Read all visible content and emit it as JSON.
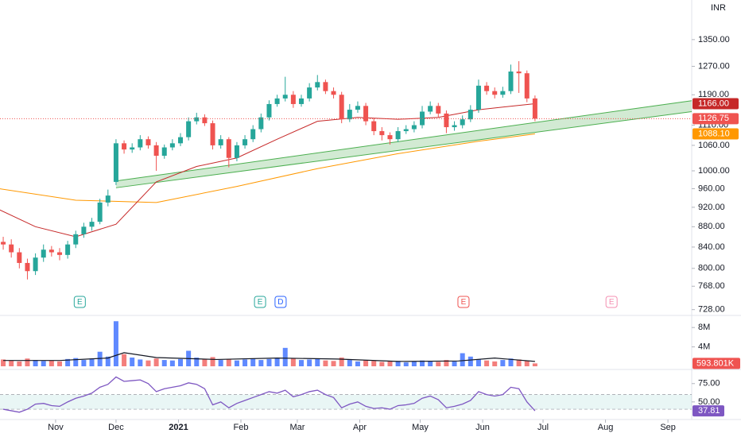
{
  "chart_data": {
    "type": "candlestick",
    "currency": "INR",
    "xlim": [
      -7.6,
      335.8
    ],
    "xticks": [
      {
        "value": 20,
        "label": "Nov"
      },
      {
        "value": 50,
        "label": "Dec"
      },
      {
        "value": 81,
        "label": "2021"
      },
      {
        "value": 112,
        "label": "Feb"
      },
      {
        "value": 140,
        "label": "Mar"
      },
      {
        "value": 171,
        "label": "Apr"
      },
      {
        "value": 201,
        "label": "May"
      },
      {
        "value": 232,
        "label": "Jun"
      },
      {
        "value": 262,
        "label": "Jul"
      },
      {
        "value": 293,
        "label": "Aug"
      },
      {
        "value": 324,
        "label": "Sep"
      }
    ],
    "ylim": [
      721,
      1478
    ],
    "log_scale": true,
    "grid": false,
    "yticks": [
      {
        "value": 728,
        "label": "728.00"
      },
      {
        "value": 768,
        "label": "768.00"
      },
      {
        "value": 800,
        "label": "800.00"
      },
      {
        "value": 840,
        "label": "840.00"
      },
      {
        "value": 880,
        "label": "880.00"
      },
      {
        "value": 920,
        "label": "920.00"
      },
      {
        "value": 960,
        "label": "960.00"
      },
      {
        "value": 1000,
        "label": "1000.00"
      },
      {
        "value": 1060,
        "label": "1060.00"
      },
      {
        "value": 1110,
        "label": "1110.00"
      },
      {
        "value": 1190,
        "label": "1190.00"
      },
      {
        "value": 1270,
        "label": "1270.00"
      },
      {
        "value": 1350,
        "label": "1350.00"
      }
    ],
    "up_color": "#26a69a",
    "down_color": "#ef5350",
    "x": [
      -6,
      -2,
      2,
      6,
      10,
      14,
      18,
      22,
      26,
      30,
      34,
      38,
      42,
      46,
      50,
      54,
      58,
      62,
      66,
      70,
      74,
      78,
      82,
      86,
      90,
      94,
      98,
      102,
      106,
      110,
      114,
      118,
      122,
      126,
      130,
      134,
      138,
      142,
      146,
      150,
      154,
      158,
      162,
      166,
      170,
      174,
      178,
      182,
      186,
      190,
      194,
      198,
      202,
      206,
      210,
      214,
      218,
      222,
      226,
      230,
      234,
      238,
      242,
      246,
      250,
      254,
      258
    ],
    "open": [
      850,
      845,
      830,
      810,
      795,
      820,
      835,
      830,
      825,
      845,
      865,
      880,
      890,
      930,
      975,
      1065,
      1050,
      1055,
      1075,
      1060,
      1035,
      1055,
      1065,
      1080,
      1120,
      1130,
      1115,
      1060,
      1075,
      1030,
      1060,
      1075,
      1100,
      1130,
      1165,
      1180,
      1190,
      1165,
      1180,
      1210,
      1225,
      1200,
      1190,
      1125,
      1150,
      1160,
      1120,
      1095,
      1085,
      1075,
      1095,
      1100,
      1110,
      1145,
      1160,
      1140,
      1105,
      1110,
      1125,
      1150,
      1215,
      1200,
      1190,
      1200,
      1255,
      1250,
      1180
    ],
    "high": [
      860,
      855,
      838,
      818,
      828,
      845,
      842,
      838,
      852,
      872,
      888,
      898,
      938,
      958,
      1075,
      1072,
      1065,
      1085,
      1082,
      1068,
      1062,
      1075,
      1090,
      1130,
      1142,
      1138,
      1122,
      1085,
      1080,
      1068,
      1085,
      1110,
      1140,
      1175,
      1190,
      1240,
      1200,
      1190,
      1222,
      1245,
      1232,
      1210,
      1198,
      1165,
      1172,
      1168,
      1128,
      1105,
      1092,
      1105,
      1110,
      1120,
      1160,
      1172,
      1168,
      1148,
      1120,
      1135,
      1162,
      1232,
      1225,
      1210,
      1212,
      1275,
      1285,
      1258,
      1188
    ],
    "low": [
      835,
      820,
      800,
      780,
      788,
      812,
      822,
      815,
      818,
      838,
      858,
      872,
      885,
      922,
      968,
      1040,
      1042,
      1048,
      1052,
      1000,
      1028,
      1048,
      1058,
      1072,
      1112,
      1108,
      1050,
      1052,
      1008,
      1022,
      1052,
      1068,
      1092,
      1122,
      1158,
      1172,
      1155,
      1158,
      1172,
      1202,
      1192,
      1180,
      1115,
      1118,
      1142,
      1110,
      1085,
      1072,
      1062,
      1068,
      1088,
      1092,
      1102,
      1138,
      1130,
      1090,
      1096,
      1102,
      1118,
      1142,
      1190,
      1180,
      1182,
      1192,
      1195,
      1170,
      1120
    ],
    "close": [
      845,
      830,
      810,
      795,
      820,
      835,
      830,
      825,
      845,
      865,
      880,
      890,
      930,
      945,
      1065,
      1050,
      1055,
      1075,
      1060,
      1035,
      1055,
      1065,
      1080,
      1120,
      1130,
      1115,
      1060,
      1075,
      1030,
      1060,
      1075,
      1100,
      1130,
      1165,
      1180,
      1190,
      1165,
      1180,
      1210,
      1225,
      1200,
      1190,
      1125,
      1150,
      1160,
      1120,
      1095,
      1085,
      1075,
      1095,
      1100,
      1110,
      1145,
      1160,
      1140,
      1105,
      1110,
      1125,
      1150,
      1215,
      1200,
      1190,
      1200,
      1255,
      1250,
      1180,
      1126.75
    ],
    "last_close_label": "1126.75",
    "moving_averages": [
      {
        "color": "#ff9800",
        "x": [
          -8,
          30,
          70,
          110,
          150,
          190,
          230,
          258
        ],
        "values": [
          960,
          935,
          930,
          965,
          1005,
          1040,
          1070,
          1088.1
        ],
        "value_label": "1088.10"
      },
      {
        "color": "#c62828",
        "x": [
          -8,
          10,
          30,
          50,
          70,
          90,
          110,
          130,
          150,
          170,
          190,
          210,
          230,
          258
        ],
        "values": [
          915,
          880,
          860,
          885,
          975,
          1010,
          1030,
          1075,
          1120,
          1130,
          1125,
          1130,
          1150,
          1166
        ],
        "value_label": "1166.00"
      }
    ],
    "channel": {
      "color": "#4caf50",
      "fill": "#a5d6a7",
      "x": [
        50,
        335.8
      ],
      "upper": [
        977,
        1174
      ],
      "lower": [
        962,
        1145
      ]
    },
    "events": [
      {
        "x": 32,
        "label": "E",
        "color": "#26a69a"
      },
      {
        "x": 121.5,
        "label": "E",
        "color": "#26a69a"
      },
      {
        "x": 131.7,
        "label": "D",
        "color": "#2962ff"
      },
      {
        "x": 222.5,
        "label": "E",
        "color": "#ef5350"
      },
      {
        "x": 296,
        "label": "E",
        "color": "#f48fb1"
      }
    ],
    "volume": {
      "ylim": [
        0,
        10000000
      ],
      "yticks": [
        {
          "value": 4000000,
          "label": "4M"
        },
        {
          "value": 8000000,
          "label": "8M"
        }
      ],
      "up_color": "#2962ff",
      "down_color": "#ef5350",
      "values": [
        1400000,
        1200000,
        1000000,
        1600000,
        1300000,
        1100000,
        1200000,
        1000000,
        1500000,
        1700000,
        1300000,
        1600000,
        3000000,
        2000000,
        9300000,
        2500000,
        1800000,
        1400000,
        1200000,
        1600000,
        1300000,
        1200000,
        1500000,
        3200000,
        1800000,
        1400000,
        1900000,
        1300000,
        1500000,
        1200000,
        1400000,
        1600000,
        1300000,
        1500000,
        1700000,
        3800000,
        1600000,
        1300000,
        1400000,
        1500000,
        1200000,
        1100000,
        1800000,
        1300000,
        1000000,
        1200000,
        1100000,
        900000,
        1000000,
        1100000,
        800000,
        1000000,
        1200000,
        1100000,
        900000,
        1300000,
        1000000,
        2700000,
        2000000,
        1400000,
        1200000,
        1000000,
        1300000,
        1600000,
        1400000,
        1100000,
        593801
      ],
      "value_label": "593.801K",
      "ma": {
        "color": "#131722",
        "x": [
          -6,
          22,
          46,
          54,
          70,
          100,
          130,
          160,
          190,
          220,
          238,
          258
        ],
        "values": [
          1200000,
          1200000,
          1700000,
          2800000,
          1800000,
          1400000,
          1700000,
          1500000,
          1000000,
          1100000,
          1700000,
          1000000
        ]
      }
    },
    "rsi": {
      "ylim": [
        26,
        91
      ],
      "yticks": [
        {
          "value": 50,
          "label": "50.00"
        },
        {
          "value": 75,
          "label": "75.00"
        }
      ],
      "band": [
        40,
        60
      ],
      "color": "#7e57c2",
      "values": [
        40,
        38,
        36,
        40,
        47,
        48,
        45,
        44,
        50,
        55,
        58,
        62,
        70,
        74,
        84,
        78,
        79,
        80,
        75,
        64,
        68,
        70,
        72,
        76,
        74,
        68,
        46,
        50,
        42,
        48,
        52,
        56,
        60,
        64,
        62,
        66,
        57,
        60,
        64,
        66,
        60,
        56,
        42,
        47,
        50,
        44,
        41,
        42,
        40,
        45,
        46,
        48,
        55,
        58,
        53,
        42,
        44,
        47,
        52,
        64,
        60,
        58,
        60,
        70,
        68,
        50,
        37.81
      ],
      "value_label": "37.81"
    }
  }
}
